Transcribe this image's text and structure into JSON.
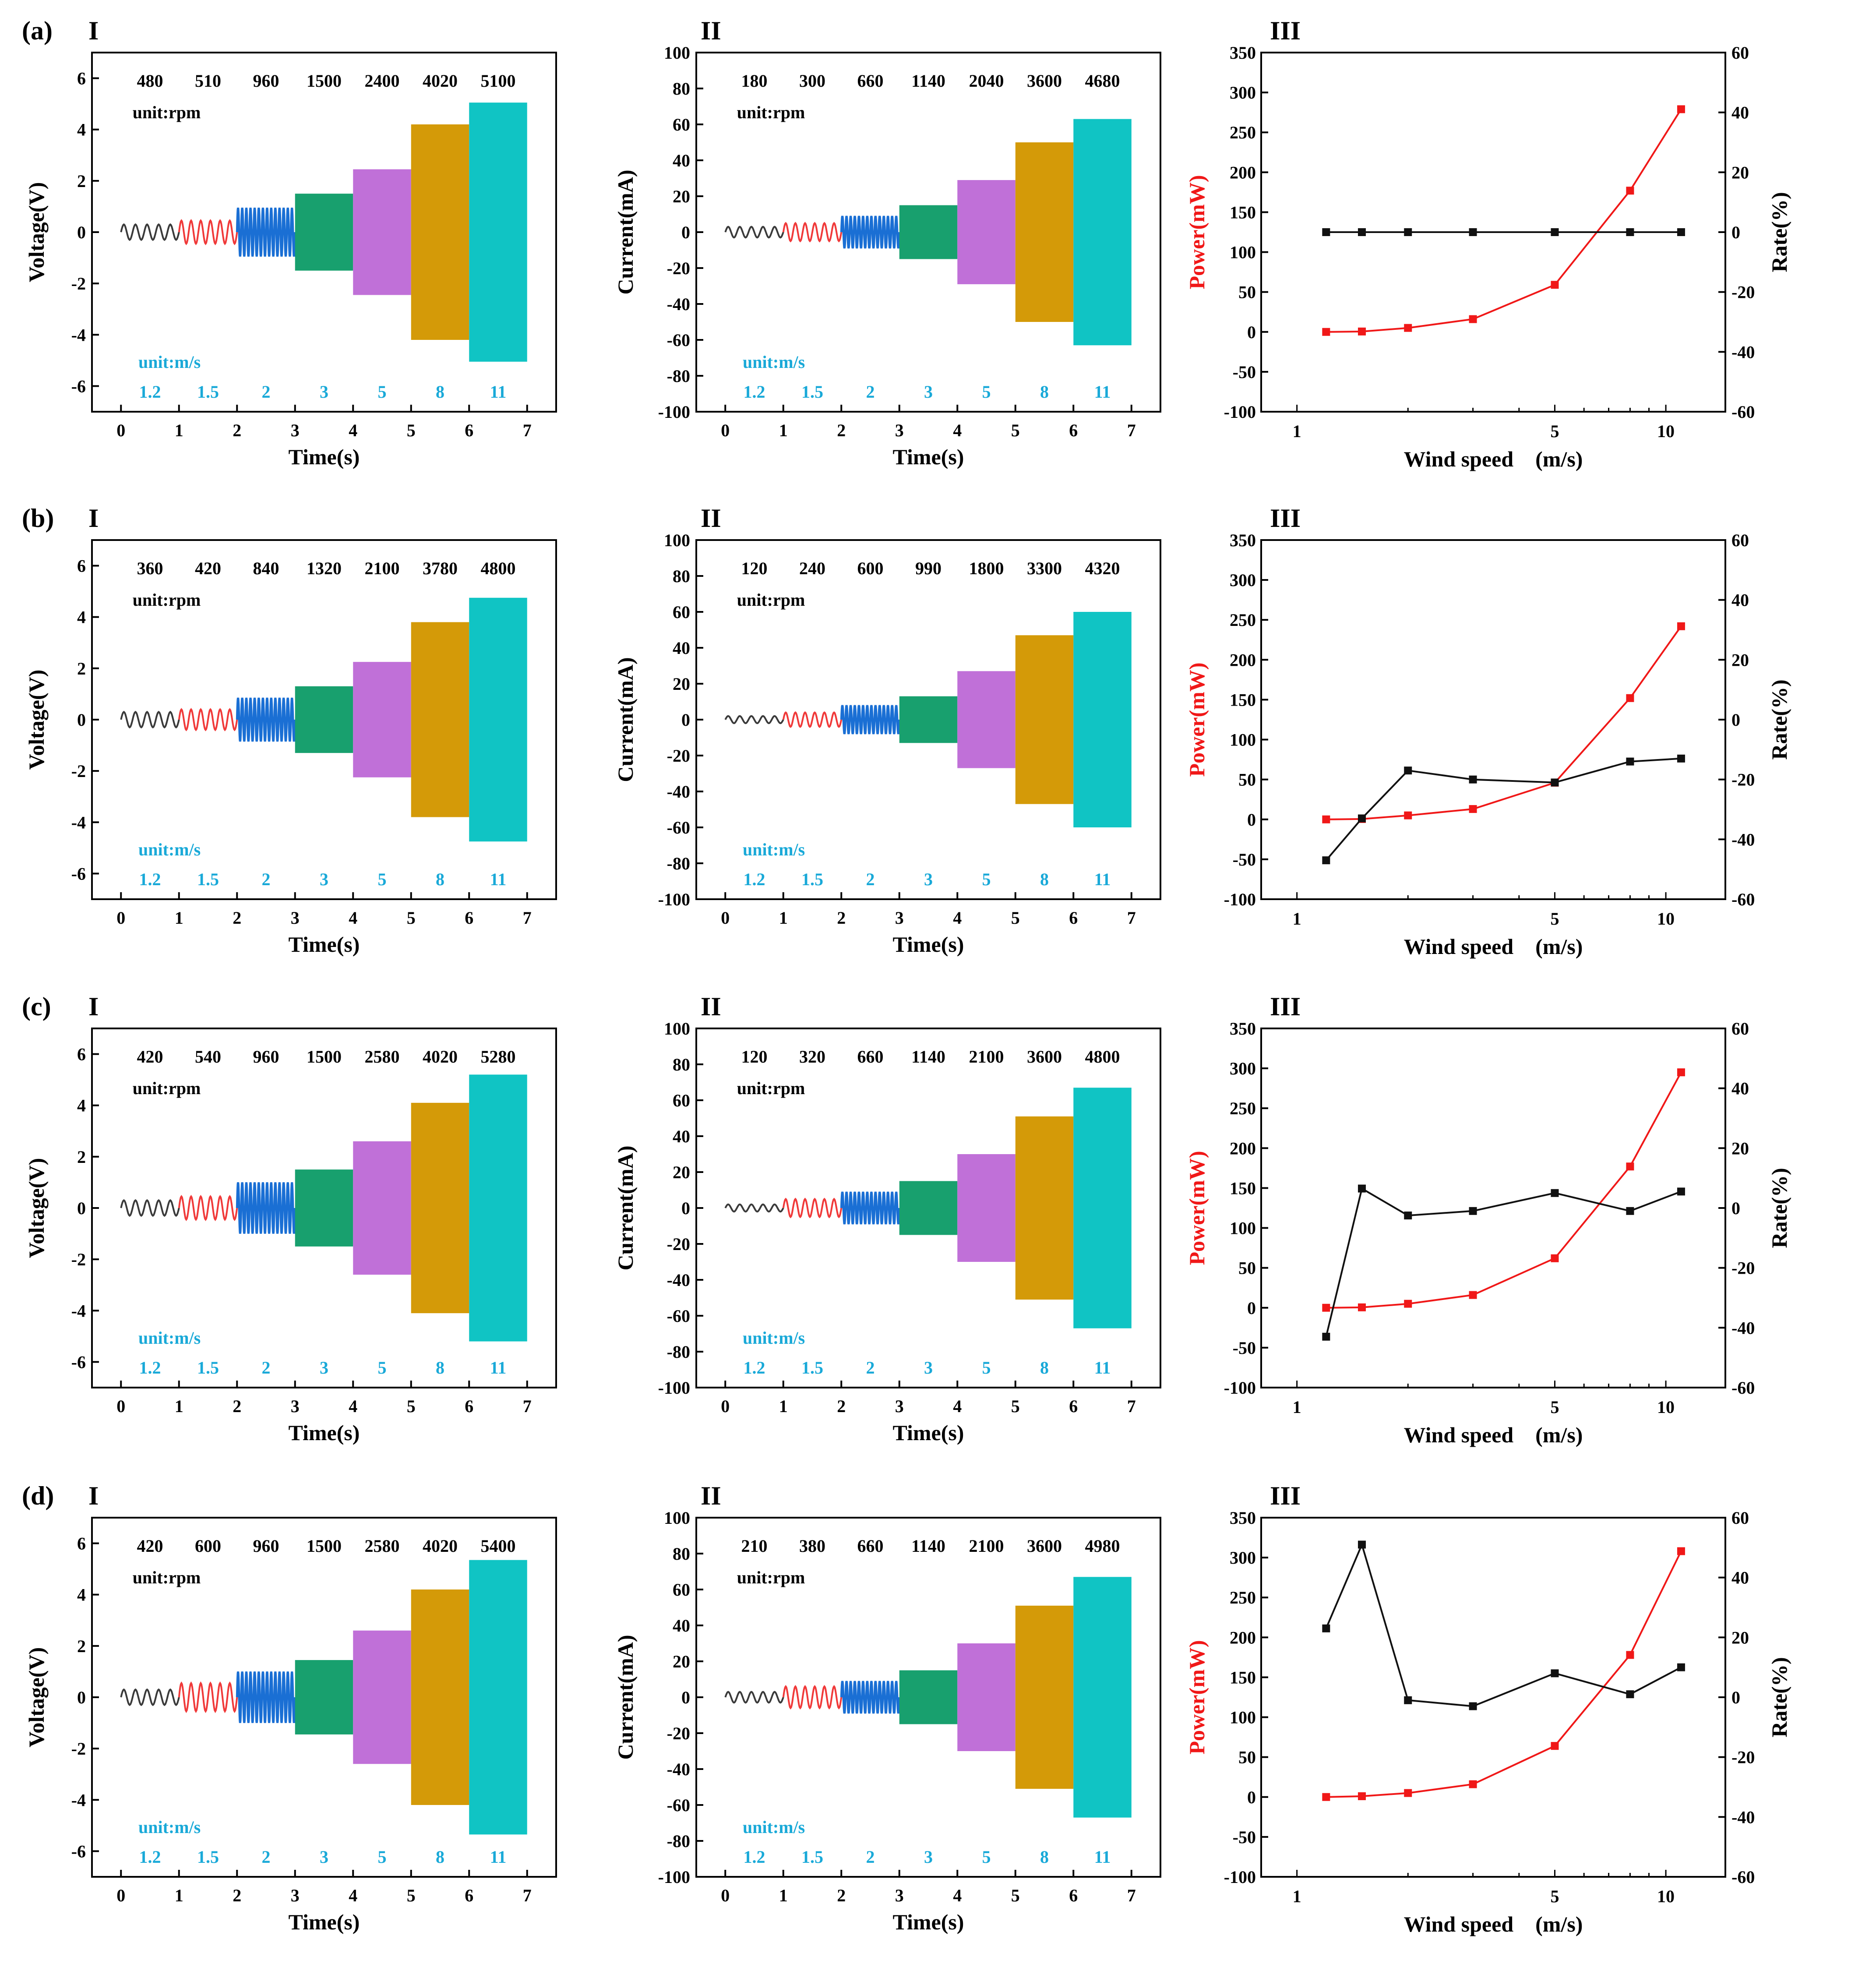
{
  "colors": {
    "segments": [
      "#3a3a3a",
      "#f03a3a",
      "#1a6fd4",
      "#18a06e",
      "#c070d8",
      "#d49a08",
      "#10c4c4"
    ],
    "speed_label": "#19a9d8",
    "power": "#f01818",
    "rate": "#111111",
    "axis": "#000000"
  },
  "chart_data": [
    {
      "row": "(a)",
      "panel": "I",
      "type": "waveform",
      "xlabel": "Time(s)",
      "ylabel": "Voltage(V)",
      "xlim": [
        -0.5,
        7.5
      ],
      "ylim": [
        -7,
        7
      ],
      "xticks": [
        "0",
        "1",
        "2",
        "3",
        "4",
        "5",
        "6",
        "7"
      ],
      "yticks": [
        "-6",
        "-4",
        "-2",
        "0",
        "2",
        "4",
        "6"
      ],
      "segments": [
        {
          "t": [
            0,
            1
          ],
          "amp": 0.3,
          "rpm": "480",
          "speed": "1.2"
        },
        {
          "t": [
            1,
            2
          ],
          "amp": 0.45,
          "rpm": "510",
          "speed": "1.5"
        },
        {
          "t": [
            2,
            3
          ],
          "amp": 0.95,
          "rpm": "960",
          "speed": "2"
        },
        {
          "t": [
            3,
            4
          ],
          "amp": 1.5,
          "rpm": "1500",
          "speed": "3"
        },
        {
          "t": [
            4,
            5
          ],
          "amp": 2.45,
          "rpm": "2400",
          "speed": "5"
        },
        {
          "t": [
            5,
            6
          ],
          "amp": 4.2,
          "rpm": "4020",
          "speed": "8"
        },
        {
          "t": [
            6,
            7
          ],
          "amp": 5.05,
          "rpm": "5100",
          "speed": "11"
        }
      ],
      "rpm_unit": "unit:rpm",
      "speed_unit": "unit:m/s"
    },
    {
      "row": "(a)",
      "panel": "II",
      "type": "waveform",
      "xlabel": "Time(s)",
      "ylabel": "Current(mA)",
      "xlim": [
        -0.5,
        7.5
      ],
      "ylim": [
        -100,
        100
      ],
      "xticks": [
        "0",
        "1",
        "2",
        "3",
        "4",
        "5",
        "6",
        "7"
      ],
      "yticks": [
        "-100",
        "-80",
        "-60",
        "-40",
        "-20",
        "0",
        "20",
        "40",
        "60",
        "80",
        "100"
      ],
      "segments": [
        {
          "t": [
            0,
            1
          ],
          "amp": 3,
          "rpm": "180",
          "speed": "1.2"
        },
        {
          "t": [
            1,
            2
          ],
          "amp": 5,
          "rpm": "300",
          "speed": "1.5"
        },
        {
          "t": [
            2,
            3
          ],
          "amp": 9,
          "rpm": "660",
          "speed": "2"
        },
        {
          "t": [
            3,
            4
          ],
          "amp": 15,
          "rpm": "1140",
          "speed": "3"
        },
        {
          "t": [
            4,
            5
          ],
          "amp": 29,
          "rpm": "2040",
          "speed": "5"
        },
        {
          "t": [
            5,
            6
          ],
          "amp": 50,
          "rpm": "3600",
          "speed": "8"
        },
        {
          "t": [
            6,
            7
          ],
          "amp": 63,
          "rpm": "4680",
          "speed": "11"
        }
      ],
      "rpm_unit": "unit:rpm",
      "speed_unit": "unit:m/s"
    },
    {
      "row": "(a)",
      "panel": "III",
      "type": "line",
      "xlabel": "Wind speed　(m/s)",
      "ylabel": "Power(mW)",
      "y2label": "Rate(%)",
      "xscale": "log",
      "xlim": [
        0.8,
        14.5
      ],
      "ylim": [
        -100,
        350
      ],
      "y2lim": [
        -60,
        60
      ],
      "xticks": [
        "1",
        "5",
        "10"
      ],
      "yticks": [
        "-100",
        "-50",
        "0",
        "50",
        "100",
        "150",
        "200",
        "250",
        "300",
        "350"
      ],
      "y2ticks": [
        "-60",
        "-40",
        "-20",
        "0",
        "20",
        "40",
        "60"
      ],
      "x": [
        1.2,
        1.5,
        2,
        3,
        5,
        8,
        11
      ],
      "series": [
        {
          "name": "Power",
          "axis": "left",
          "values": [
            0,
            0.5,
            5,
            16,
            59,
            177,
            279
          ]
        },
        {
          "name": "Rate",
          "axis": "right",
          "values": [
            0,
            0,
            0,
            0,
            0,
            0,
            0
          ]
        }
      ]
    },
    {
      "row": "(b)",
      "panel": "I",
      "type": "waveform",
      "xlabel": "Time(s)",
      "ylabel": "Voltage(V)",
      "xlim": [
        -0.5,
        7.5
      ],
      "ylim": [
        -7,
        7
      ],
      "xticks": [
        "0",
        "1",
        "2",
        "3",
        "4",
        "5",
        "6",
        "7"
      ],
      "yticks": [
        "-6",
        "-4",
        "-2",
        "0",
        "2",
        "4",
        "6"
      ],
      "segments": [
        {
          "t": [
            0,
            1
          ],
          "amp": 0.3,
          "rpm": "360",
          "speed": "1.2"
        },
        {
          "t": [
            1,
            2
          ],
          "amp": 0.4,
          "rpm": "420",
          "speed": "1.5"
        },
        {
          "t": [
            2,
            3
          ],
          "amp": 0.85,
          "rpm": "840",
          "speed": "2"
        },
        {
          "t": [
            3,
            4
          ],
          "amp": 1.3,
          "rpm": "1320",
          "speed": "3"
        },
        {
          "t": [
            4,
            5
          ],
          "amp": 2.25,
          "rpm": "2100",
          "speed": "5"
        },
        {
          "t": [
            5,
            6
          ],
          "amp": 3.8,
          "rpm": "3780",
          "speed": "8"
        },
        {
          "t": [
            6,
            7
          ],
          "amp": 4.75,
          "rpm": "4800",
          "speed": "11"
        }
      ],
      "rpm_unit": "unit:rpm",
      "speed_unit": "unit:m/s"
    },
    {
      "row": "(b)",
      "panel": "II",
      "type": "waveform",
      "xlabel": "Time(s)",
      "ylabel": "Current(mA)",
      "xlim": [
        -0.5,
        7.5
      ],
      "ylim": [
        -100,
        100
      ],
      "xticks": [
        "0",
        "1",
        "2",
        "3",
        "4",
        "5",
        "6",
        "7"
      ],
      "yticks": [
        "-100",
        "-80",
        "-60",
        "-40",
        "-20",
        "0",
        "20",
        "40",
        "60",
        "80",
        "100"
      ],
      "segments": [
        {
          "t": [
            0,
            1
          ],
          "amp": 2,
          "rpm": "120",
          "speed": "1.2"
        },
        {
          "t": [
            1,
            2
          ],
          "amp": 4,
          "rpm": "240",
          "speed": "1.5"
        },
        {
          "t": [
            2,
            3
          ],
          "amp": 8,
          "rpm": "600",
          "speed": "2"
        },
        {
          "t": [
            3,
            4
          ],
          "amp": 13,
          "rpm": "990",
          "speed": "3"
        },
        {
          "t": [
            4,
            5
          ],
          "amp": 27,
          "rpm": "1800",
          "speed": "5"
        },
        {
          "t": [
            5,
            6
          ],
          "amp": 47,
          "rpm": "3300",
          "speed": "8"
        },
        {
          "t": [
            6,
            7
          ],
          "amp": 60,
          "rpm": "4320",
          "speed": "11"
        }
      ],
      "rpm_unit": "unit:rpm",
      "speed_unit": "unit:m/s"
    },
    {
      "row": "(b)",
      "panel": "III",
      "type": "line",
      "xlabel": "Wind speed　(m/s)",
      "ylabel": "Power(mW)",
      "y2label": "Rate(%)",
      "xscale": "log",
      "xlim": [
        0.8,
        14.5
      ],
      "ylim": [
        -100,
        350
      ],
      "y2lim": [
        -60,
        60
      ],
      "xticks": [
        "1",
        "5",
        "10"
      ],
      "yticks": [
        "-100",
        "-50",
        "0",
        "50",
        "100",
        "150",
        "200",
        "250",
        "300",
        "350"
      ],
      "y2ticks": [
        "-60",
        "-40",
        "-20",
        "0",
        "20",
        "40",
        "60"
      ],
      "x": [
        1.2,
        1.5,
        2,
        3,
        5,
        8,
        11
      ],
      "series": [
        {
          "name": "Power",
          "axis": "left",
          "values": [
            0,
            0.5,
            5,
            13,
            46,
            152,
            242
          ]
        },
        {
          "name": "Rate",
          "axis": "right",
          "values": [
            -47,
            -33,
            -17,
            -20,
            -21,
            -14,
            -13
          ]
        }
      ]
    },
    {
      "row": "(c)",
      "panel": "I",
      "type": "waveform",
      "xlabel": "Time(s)",
      "ylabel": "Voltage(V)",
      "xlim": [
        -0.5,
        7.5
      ],
      "ylim": [
        -7,
        7
      ],
      "xticks": [
        "0",
        "1",
        "2",
        "3",
        "4",
        "5",
        "6",
        "7"
      ],
      "yticks": [
        "-6",
        "-4",
        "-2",
        "0",
        "2",
        "4",
        "6"
      ],
      "segments": [
        {
          "t": [
            0,
            1
          ],
          "amp": 0.3,
          "rpm": "420",
          "speed": "1.2"
        },
        {
          "t": [
            1,
            2
          ],
          "amp": 0.45,
          "rpm": "540",
          "speed": "1.5"
        },
        {
          "t": [
            2,
            3
          ],
          "amp": 1.0,
          "rpm": "960",
          "speed": "2"
        },
        {
          "t": [
            3,
            4
          ],
          "amp": 1.5,
          "rpm": "1500",
          "speed": "3"
        },
        {
          "t": [
            4,
            5
          ],
          "amp": 2.6,
          "rpm": "2580",
          "speed": "5"
        },
        {
          "t": [
            5,
            6
          ],
          "amp": 4.1,
          "rpm": "4020",
          "speed": "8"
        },
        {
          "t": [
            6,
            7
          ],
          "amp": 5.2,
          "rpm": "5280",
          "speed": "11"
        }
      ],
      "rpm_unit": "unit:rpm",
      "speed_unit": "unit:m/s"
    },
    {
      "row": "(c)",
      "panel": "II",
      "type": "waveform",
      "xlabel": "Time(s)",
      "ylabel": "Current(mA)",
      "xlim": [
        -0.5,
        7.5
      ],
      "ylim": [
        -100,
        100
      ],
      "xticks": [
        "0",
        "1",
        "2",
        "3",
        "4",
        "5",
        "6",
        "7"
      ],
      "yticks": [
        "-100",
        "-80",
        "-60",
        "-40",
        "-20",
        "0",
        "20",
        "40",
        "60",
        "80",
        "100"
      ],
      "segments": [
        {
          "t": [
            0,
            1
          ],
          "amp": 2,
          "rpm": "120",
          "speed": "1.2"
        },
        {
          "t": [
            1,
            2
          ],
          "amp": 5,
          "rpm": "320",
          "speed": "1.5"
        },
        {
          "t": [
            2,
            3
          ],
          "amp": 9,
          "rpm": "660",
          "speed": "2"
        },
        {
          "t": [
            3,
            4
          ],
          "amp": 15,
          "rpm": "1140",
          "speed": "3"
        },
        {
          "t": [
            4,
            5
          ],
          "amp": 30,
          "rpm": "2100",
          "speed": "5"
        },
        {
          "t": [
            5,
            6
          ],
          "amp": 51,
          "rpm": "3600",
          "speed": "8"
        },
        {
          "t": [
            6,
            7
          ],
          "amp": 67,
          "rpm": "4800",
          "speed": "11"
        }
      ],
      "rpm_unit": "unit:rpm",
      "speed_unit": "unit:m/s"
    },
    {
      "row": "(c)",
      "panel": "III",
      "type": "line",
      "xlabel": "Wind speed　(m/s)",
      "ylabel": "Power(mW)",
      "y2label": "Rate(%)",
      "xscale": "log",
      "xlim": [
        0.8,
        14.5
      ],
      "ylim": [
        -100,
        350
      ],
      "y2lim": [
        -60,
        60
      ],
      "xticks": [
        "1",
        "5",
        "10"
      ],
      "yticks": [
        "-100",
        "-50",
        "0",
        "50",
        "100",
        "150",
        "200",
        "250",
        "300",
        "350"
      ],
      "y2ticks": [
        "-60",
        "-40",
        "-20",
        "0",
        "20",
        "40",
        "60"
      ],
      "x": [
        1.2,
        1.5,
        2,
        3,
        5,
        8,
        11
      ],
      "series": [
        {
          "name": "Power",
          "axis": "left",
          "values": [
            0,
            0.5,
            5,
            16,
            62,
            177,
            295
          ]
        },
        {
          "name": "Rate",
          "axis": "right",
          "values": [
            -43,
            6.5,
            -2.5,
            -1,
            5,
            -1,
            5.5
          ]
        }
      ]
    },
    {
      "row": "(d)",
      "panel": "I",
      "type": "waveform",
      "xlabel": "Time(s)",
      "ylabel": "Voltage(V)",
      "xlim": [
        -0.5,
        7.5
      ],
      "ylim": [
        -7,
        7
      ],
      "xticks": [
        "0",
        "1",
        "2",
        "3",
        "4",
        "5",
        "6",
        "7"
      ],
      "yticks": [
        "-6",
        "-4",
        "-2",
        "0",
        "2",
        "4",
        "6"
      ],
      "segments": [
        {
          "t": [
            0,
            1
          ],
          "amp": 0.3,
          "rpm": "420",
          "speed": "1.2"
        },
        {
          "t": [
            1,
            2
          ],
          "amp": 0.55,
          "rpm": "600",
          "speed": "1.5"
        },
        {
          "t": [
            2,
            3
          ],
          "amp": 1.0,
          "rpm": "960",
          "speed": "2"
        },
        {
          "t": [
            3,
            4
          ],
          "amp": 1.45,
          "rpm": "1500",
          "speed": "3"
        },
        {
          "t": [
            4,
            5
          ],
          "amp": 2.6,
          "rpm": "2580",
          "speed": "5"
        },
        {
          "t": [
            5,
            6
          ],
          "amp": 4.2,
          "rpm": "4020",
          "speed": "8"
        },
        {
          "t": [
            6,
            7
          ],
          "amp": 5.35,
          "rpm": "5400",
          "speed": "11"
        }
      ],
      "rpm_unit": "unit:rpm",
      "speed_unit": "unit:m/s"
    },
    {
      "row": "(d)",
      "panel": "II",
      "type": "waveform",
      "xlabel": "Time(s)",
      "ylabel": "Current(mA)",
      "xlim": [
        -0.5,
        7.5
      ],
      "ylim": [
        -100,
        100
      ],
      "xticks": [
        "0",
        "1",
        "2",
        "3",
        "4",
        "5",
        "6",
        "7"
      ],
      "yticks": [
        "-100",
        "-80",
        "-60",
        "-40",
        "-20",
        "0",
        "20",
        "40",
        "60",
        "80",
        "100"
      ],
      "segments": [
        {
          "t": [
            0,
            1
          ],
          "amp": 3,
          "rpm": "210",
          "speed": "1.2"
        },
        {
          "t": [
            1,
            2
          ],
          "amp": 6,
          "rpm": "380",
          "speed": "1.5"
        },
        {
          "t": [
            2,
            3
          ],
          "amp": 9,
          "rpm": "660",
          "speed": "2"
        },
        {
          "t": [
            3,
            4
          ],
          "amp": 15,
          "rpm": "1140",
          "speed": "3"
        },
        {
          "t": [
            4,
            5
          ],
          "amp": 30,
          "rpm": "2100",
          "speed": "5"
        },
        {
          "t": [
            5,
            6
          ],
          "amp": 51,
          "rpm": "3600",
          "speed": "8"
        },
        {
          "t": [
            6,
            7
          ],
          "amp": 67,
          "rpm": "4980",
          "speed": "11"
        }
      ],
      "rpm_unit": "unit:rpm",
      "speed_unit": "unit:m/s"
    },
    {
      "row": "(d)",
      "panel": "III",
      "type": "line",
      "xlabel": "Wind speed　(m/s)",
      "ylabel": "Power(mW)",
      "y2label": "Rate(%)",
      "xscale": "log",
      "xlim": [
        0.8,
        14.5
      ],
      "ylim": [
        -100,
        350
      ],
      "y2lim": [
        -60,
        60
      ],
      "xticks": [
        "1",
        "5",
        "10"
      ],
      "yticks": [
        "-100",
        "-50",
        "0",
        "50",
        "100",
        "150",
        "200",
        "250",
        "300",
        "350"
      ],
      "y2ticks": [
        "-60",
        "-40",
        "-20",
        "0",
        "20",
        "40",
        "60"
      ],
      "x": [
        1.2,
        1.5,
        2,
        3,
        5,
        8,
        11
      ],
      "series": [
        {
          "name": "Power",
          "axis": "left",
          "values": [
            0,
            1,
            5,
            16,
            64,
            178,
            308
          ]
        },
        {
          "name": "Rate",
          "axis": "right",
          "values": [
            23,
            51,
            -1,
            -3,
            8,
            1,
            10
          ]
        }
      ]
    }
  ]
}
